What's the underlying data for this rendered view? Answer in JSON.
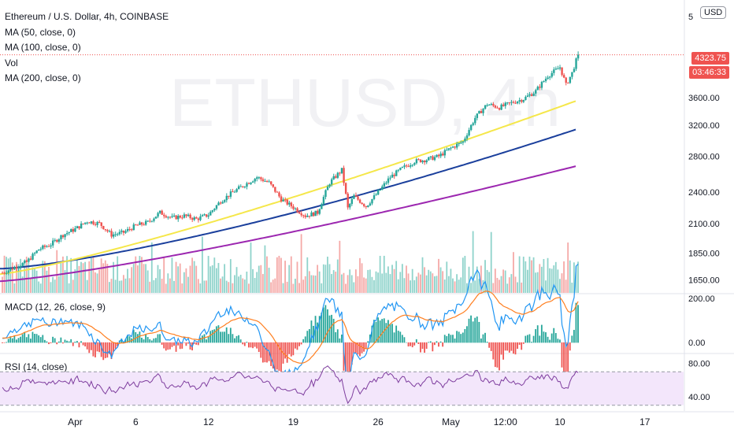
{
  "header": {
    "title": "Ethereum / U.S. Dollar, 4h, COINBASE",
    "indicators": [
      "MA (50, close, 0)",
      "MA (100, close, 0)",
      "Vol",
      "MA (200, close, 0)"
    ],
    "watermark": "ETHUSD, 4h",
    "currency_button": "USD"
  },
  "price_label": {
    "price": "4323.75",
    "countdown": "03:46:33"
  },
  "panels": {
    "macd_title": "MACD (12, 26, close, 9)",
    "rsi_title": "RSI (14, close)"
  },
  "colors": {
    "up": "#26a69a",
    "down": "#ef5350",
    "vol_up": "#8fd3cb",
    "vol_down": "#f5a9a7",
    "ma50": "#f5e74a",
    "ma100": "#1a3f9c",
    "ma200": "#9c27b0",
    "macd": "#2196f3",
    "signal": "#ff7f20",
    "rsi": "#7e3d9e",
    "rsi_band": "#f3e6fb",
    "price_label": "#ef5350",
    "countdown_bg": "#ef5350"
  },
  "chart_data": {
    "type": "candlestick",
    "x_ticks": [
      {
        "label": "Apr",
        "day": 1
      },
      {
        "label": "6",
        "day": 6
      },
      {
        "label": "12",
        "day": 12
      },
      {
        "label": "19",
        "day": 19
      },
      {
        "label": "26",
        "day": 26
      },
      {
        "label": "May",
        "day": 32
      },
      {
        "label": "12:00",
        "day": 36.5
      },
      {
        "label": "10",
        "day": 41
      },
      {
        "label": "17",
        "day": 48
      }
    ],
    "x_range_days": [
      -5.2,
      51.2
    ],
    "last_day": 42.5,
    "price_axis": {
      "ticks": [
        1650,
        1850,
        2100,
        2400,
        2800,
        3200,
        3600
      ],
      "top_label": "5",
      "log": true,
      "range": [
        1560,
        5250
      ]
    },
    "price_anchors": [
      [
        -5.0,
        1700
      ],
      [
        -4.0,
        1740
      ],
      [
        -3.0,
        1780
      ],
      [
        -2.0,
        1880
      ],
      [
        -1.0,
        1920
      ],
      [
        0.0,
        2000
      ],
      [
        1.0,
        2050
      ],
      [
        2.0,
        2120
      ],
      [
        3.0,
        2100
      ],
      [
        4.0,
        2000
      ],
      [
        5.0,
        2020
      ],
      [
        6.0,
        2080
      ],
      [
        7.0,
        2110
      ],
      [
        8.0,
        2200
      ],
      [
        9.0,
        2150
      ],
      [
        10.0,
        2170
      ],
      [
        11.0,
        2140
      ],
      [
        12.0,
        2180
      ],
      [
        13.0,
        2310
      ],
      [
        14.0,
        2400
      ],
      [
        15.0,
        2480
      ],
      [
        16.0,
        2560
      ],
      [
        17.0,
        2500
      ],
      [
        18.0,
        2330
      ],
      [
        19.0,
        2250
      ],
      [
        20.0,
        2170
      ],
      [
        21.0,
        2200
      ],
      [
        22.0,
        2500
      ],
      [
        23.0,
        2640
      ],
      [
        23.5,
        2240
      ],
      [
        24.0,
        2360
      ],
      [
        25.0,
        2260
      ],
      [
        26.0,
        2400
      ],
      [
        27.0,
        2560
      ],
      [
        28.0,
        2660
      ],
      [
        29.0,
        2740
      ],
      [
        30.0,
        2760
      ],
      [
        31.0,
        2800
      ],
      [
        32.0,
        2900
      ],
      [
        33.0,
        2980
      ],
      [
        34.0,
        3300
      ],
      [
        35.0,
        3500
      ],
      [
        36.0,
        3450
      ],
      [
        37.0,
        3520
      ],
      [
        38.0,
        3580
      ],
      [
        39.0,
        3700
      ],
      [
        40.0,
        3950
      ],
      [
        41.0,
        4100
      ],
      [
        41.5,
        3800
      ],
      [
        42.0,
        4000
      ],
      [
        42.5,
        4324
      ]
    ],
    "ma50_end": 3560,
    "ma100_end": 3150,
    "ma200_end": 2690,
    "ma50_start": 1690,
    "ma100_start": 1730,
    "ma200_start": 1640,
    "volume_scale": [
      0,
      1
    ],
    "macd_axis": {
      "ticks": [
        200,
        0
      ],
      "range": [
        -40,
        215
      ]
    },
    "rsi_axis": {
      "ticks": [
        80,
        40
      ],
      "range": [
        25,
        90
      ],
      "band": [
        30,
        70
      ]
    }
  }
}
